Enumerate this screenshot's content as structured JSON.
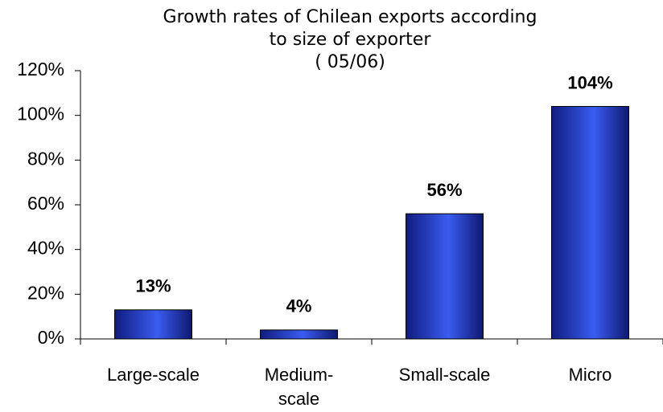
{
  "chart_data": {
    "type": "bar",
    "title": [
      "Growth rates of Chilean exports according",
      "to size of exporter",
      "( 05/06)"
    ],
    "categories": [
      "Large-scale",
      "Medium-scale",
      "Small-scale",
      "Micro"
    ],
    "values": [
      13,
      4,
      56,
      104
    ],
    "value_labels": [
      "13%",
      "4%",
      "56%",
      "104%"
    ],
    "color": "#3a5cf0",
    "ylim": [
      0,
      120
    ],
    "yticks": [
      {
        "value": 0,
        "label": "0%"
      },
      {
        "value": 20,
        "label": "20%"
      },
      {
        "value": 40,
        "label": "40%"
      },
      {
        "value": 60,
        "label": "60%"
      },
      {
        "value": 80,
        "label": "80%"
      },
      {
        "value": 100,
        "label": "100%"
      },
      {
        "value": 120,
        "label": "120%"
      }
    ],
    "grid": false
  }
}
